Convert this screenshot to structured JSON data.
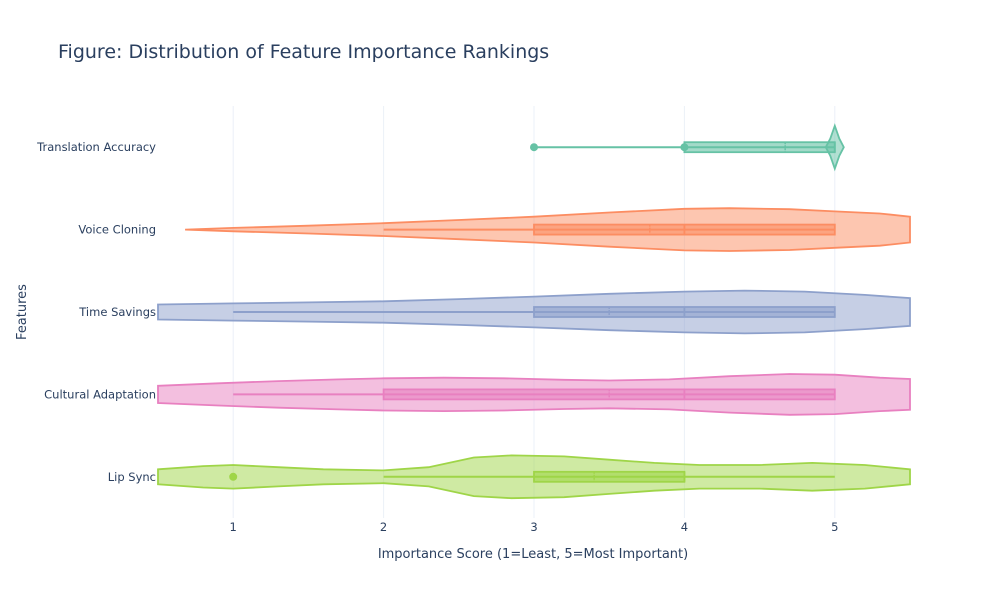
{
  "chart_data": {
    "type": "violin",
    "title": "Figure: Distribution of Feature Importance Rankings",
    "xlabel": "Importance Score (1=Least, 5=Most Important)",
    "ylabel": "Features",
    "xlim": [
      0.5,
      5.5
    ],
    "xticks": [
      "1",
      "2",
      "3",
      "4",
      "5"
    ],
    "grid": true,
    "orientation": "horizontal",
    "series": [
      {
        "name": "Lip Sync",
        "color": "#9fd548",
        "stats": {
          "min": 2,
          "q1": 3,
          "median": 4,
          "mean": 3.4,
          "q3": 4,
          "max": 5
        },
        "outliers": [
          1
        ],
        "density": [
          [
            0.5,
            0.35
          ],
          [
            0.8,
            0.5
          ],
          [
            1.0,
            0.55
          ],
          [
            1.3,
            0.45
          ],
          [
            1.6,
            0.35
          ],
          [
            2.0,
            0.3
          ],
          [
            2.3,
            0.45
          ],
          [
            2.6,
            0.9
          ],
          [
            2.85,
            1.0
          ],
          [
            3.2,
            0.95
          ],
          [
            3.5,
            0.8
          ],
          [
            3.8,
            0.65
          ],
          [
            4.1,
            0.55
          ],
          [
            4.5,
            0.55
          ],
          [
            4.85,
            0.65
          ],
          [
            5.2,
            0.55
          ],
          [
            5.5,
            0.35
          ]
        ]
      },
      {
        "name": "Cultural Adaptation",
        "color": "#e880c0",
        "stats": {
          "min": 1,
          "q1": 2,
          "median": 4,
          "mean": 3.5,
          "q3": 5,
          "max": 5
        },
        "outliers": [],
        "density": [
          [
            0.5,
            0.4
          ],
          [
            0.9,
            0.52
          ],
          [
            1.3,
            0.62
          ],
          [
            1.7,
            0.7
          ],
          [
            2.0,
            0.75
          ],
          [
            2.4,
            0.78
          ],
          [
            2.8,
            0.75
          ],
          [
            3.2,
            0.68
          ],
          [
            3.5,
            0.65
          ],
          [
            3.9,
            0.7
          ],
          [
            4.3,
            0.85
          ],
          [
            4.7,
            0.95
          ],
          [
            5.0,
            0.92
          ],
          [
            5.3,
            0.78
          ],
          [
            5.5,
            0.72
          ]
        ]
      },
      {
        "name": "Time Savings",
        "color": "#8da0cb",
        "stats": {
          "min": 1,
          "q1": 3,
          "median": 4,
          "mean": 3.5,
          "q3": 5,
          "max": 5
        },
        "outliers": [],
        "density": [
          [
            0.5,
            0.35
          ],
          [
            1.0,
            0.4
          ],
          [
            1.5,
            0.45
          ],
          [
            2.0,
            0.5
          ],
          [
            2.5,
            0.6
          ],
          [
            3.0,
            0.72
          ],
          [
            3.5,
            0.85
          ],
          [
            4.0,
            0.95
          ],
          [
            4.4,
            1.0
          ],
          [
            4.8,
            0.95
          ],
          [
            5.2,
            0.8
          ],
          [
            5.5,
            0.65
          ]
        ]
      },
      {
        "name": "Voice Cloning",
        "color": "#fc8d62",
        "stats": {
          "min": 2,
          "q1": 3,
          "median": 4,
          "mean": 3.77,
          "q3": 5,
          "max": 5
        },
        "outliers": [],
        "density": [
          [
            0.68,
            0.0
          ],
          [
            1.0,
            0.08
          ],
          [
            1.5,
            0.18
          ],
          [
            2.0,
            0.3
          ],
          [
            2.5,
            0.45
          ],
          [
            3.0,
            0.6
          ],
          [
            3.5,
            0.8
          ],
          [
            4.0,
            0.97
          ],
          [
            4.3,
            1.0
          ],
          [
            4.7,
            0.95
          ],
          [
            5.0,
            0.85
          ],
          [
            5.3,
            0.75
          ],
          [
            5.5,
            0.6
          ]
        ]
      },
      {
        "name": "Translation Accuracy",
        "color": "#66c2a5",
        "stats": {
          "min": 3,
          "q1": 4,
          "median": 5,
          "mean": 4.67,
          "q3": 5,
          "max": 5
        },
        "outliers": [
          3,
          4
        ],
        "density": [
          [
            4.94,
            0.0
          ],
          [
            4.97,
            0.4
          ],
          [
            5.0,
            1.0
          ],
          [
            5.03,
            0.4
          ],
          [
            5.06,
            0.0
          ]
        ]
      }
    ]
  }
}
